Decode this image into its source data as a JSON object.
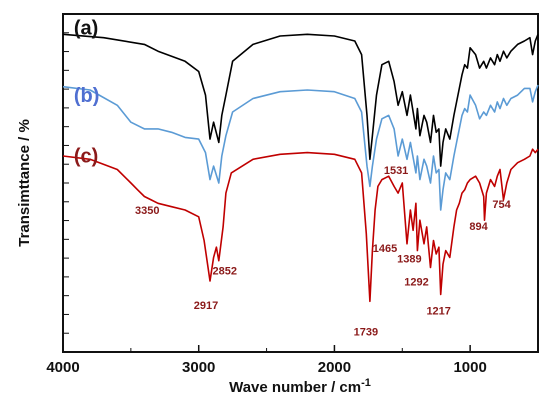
{
  "chart_data": {
    "type": "line",
    "title": "",
    "xlabel": "Wave number / cm",
    "xlabel_superscript": "-1",
    "ylabel": "Transimttance / %",
    "xlim": [
      4000,
      500
    ],
    "x_reversed": true,
    "x_ticks": [
      4000,
      3000,
      2000,
      1000
    ],
    "y_ticks_shown": false,
    "grid": false,
    "series": [
      {
        "name": "(a)",
        "color": "#000000",
        "x": [
          4000,
          3700,
          3400,
          3300,
          3100,
          3000,
          2950,
          2917,
          2890,
          2852,
          2830,
          2800,
          2750,
          2600,
          2400,
          2200,
          2000,
          1850,
          1800,
          1760,
          1739,
          1720,
          1690,
          1650,
          1600,
          1560,
          1531,
          1500,
          1465,
          1440,
          1400,
          1389,
          1370,
          1340,
          1320,
          1292,
          1270,
          1250,
          1230,
          1217,
          1200,
          1180,
          1150,
          1120,
          1100,
          1080,
          1060,
          1040,
          1020,
          1000,
          960,
          930,
          900,
          880,
          850,
          820,
          800,
          780,
          754,
          730,
          700,
          650,
          600,
          560,
          540,
          520,
          500
        ],
        "y": [
          94,
          93,
          91,
          89,
          86,
          83,
          76,
          63,
          68,
          62,
          70,
          76,
          86,
          91,
          93.5,
          94,
          93.5,
          92,
          88,
          70,
          57,
          64,
          76,
          85,
          86,
          80,
          73,
          77,
          70,
          76,
          66,
          72,
          64,
          70,
          68,
          62,
          70,
          65,
          66,
          55,
          62,
          66,
          63,
          70,
          74,
          78,
          82,
          85,
          84,
          90,
          88,
          84,
          86,
          84,
          87,
          85,
          88,
          86,
          89,
          87,
          89,
          91,
          92,
          93,
          88,
          92,
          94
        ]
      },
      {
        "name": "(b)",
        "color": "#5b9bd5",
        "x": [
          4000,
          3800,
          3600,
          3500,
          3400,
          3300,
          3200,
          3100,
          3000,
          2950,
          2917,
          2890,
          2852,
          2830,
          2800,
          2750,
          2600,
          2400,
          2200,
          2000,
          1850,
          1800,
          1760,
          1739,
          1720,
          1690,
          1650,
          1600,
          1560,
          1531,
          1500,
          1465,
          1440,
          1400,
          1389,
          1370,
          1340,
          1320,
          1292,
          1270,
          1250,
          1230,
          1217,
          1200,
          1180,
          1150,
          1120,
          1100,
          1080,
          1060,
          1040,
          1020,
          1000,
          960,
          930,
          900,
          880,
          850,
          820,
          800,
          780,
          754,
          730,
          700,
          650,
          600,
          560,
          540,
          520,
          500
        ],
        "y": [
          78.5,
          77.5,
          73,
          68,
          66,
          66,
          65,
          63.5,
          63,
          59,
          51,
          55,
          50,
          58,
          64,
          71,
          75,
          77,
          77.5,
          77,
          75,
          71,
          55,
          49,
          55,
          63,
          69,
          70,
          66,
          58,
          63,
          57,
          62,
          53,
          58,
          51,
          57,
          55,
          50,
          58,
          53,
          54,
          42,
          48,
          53,
          51,
          58,
          62,
          66,
          70,
          72,
          71,
          76,
          73,
          69,
          71,
          70,
          73,
          71,
          74,
          72,
          75,
          73,
          75,
          76,
          78,
          78,
          74,
          77,
          79
        ]
      },
      {
        "name": "(c)",
        "color": "#c00000",
        "x": [
          4000,
          3800,
          3600,
          3500,
          3450,
          3400,
          3350,
          3300,
          3200,
          3100,
          3000,
          2960,
          2917,
          2890,
          2870,
          2852,
          2820,
          2800,
          2760,
          2600,
          2400,
          2200,
          2000,
          1850,
          1800,
          1765,
          1739,
          1720,
          1700,
          1680,
          1650,
          1600,
          1560,
          1531,
          1500,
          1465,
          1440,
          1420,
          1400,
          1389,
          1370,
          1340,
          1320,
          1292,
          1270,
          1250,
          1230,
          1217,
          1200,
          1180,
          1150,
          1120,
          1100,
          1080,
          1060,
          1040,
          1020,
          1000,
          960,
          930,
          900,
          894,
          880,
          850,
          820,
          800,
          780,
          754,
          730,
          700,
          650,
          600,
          560,
          540,
          520,
          500
        ],
        "y": [
          58,
          57,
          54,
          50,
          48,
          46,
          45,
          44,
          43,
          42,
          40,
          33,
          21,
          28,
          31,
          27,
          37,
          47,
          53,
          57,
          58.5,
          59,
          58.5,
          57,
          53,
          35,
          15,
          30,
          42,
          49,
          51,
          52,
          49,
          47,
          50,
          32,
          42,
          36,
          44,
          30,
          39,
          32,
          37,
          25,
          33,
          29,
          31,
          17,
          26,
          30,
          28,
          37,
          42,
          44,
          47,
          48,
          50,
          51,
          52,
          50,
          46,
          39,
          47,
          51,
          49,
          52,
          54,
          45,
          50,
          54,
          56,
          57,
          58,
          60,
          59,
          60
        ]
      }
    ],
    "annotations": [
      {
        "label": "3350",
        "x": 3350,
        "series": "(c)"
      },
      {
        "label": "2917",
        "x": 2917,
        "series": "(c)"
      },
      {
        "label": "2852",
        "x": 2852,
        "series": "(c)"
      },
      {
        "label": "1531",
        "x": 1531,
        "series": "(b)"
      },
      {
        "label": "1465",
        "x": 1465,
        "series": "(c)"
      },
      {
        "label": "1739",
        "x": 1739,
        "series": "(c)"
      },
      {
        "label": "1389",
        "x": 1389,
        "series": "(c)"
      },
      {
        "label": "1292",
        "x": 1292,
        "series": "(c)"
      },
      {
        "label": "1217",
        "x": 1217,
        "series": "(c)"
      },
      {
        "label": "894",
        "x": 894,
        "series": "(c)"
      },
      {
        "label": "754",
        "x": 754,
        "series": "(c)"
      }
    ]
  }
}
